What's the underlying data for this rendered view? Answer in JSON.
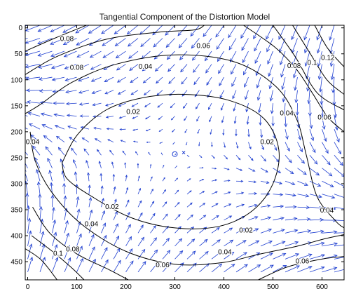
{
  "chart_data": {
    "type": "contour",
    "title": "Tangential Component of the Distortion Model",
    "xlabel": "",
    "ylabel": "",
    "xlim": [
      -5,
      645
    ],
    "ylim": [
      -5,
      485
    ],
    "y_inverted": true,
    "x_ticks": [
      0,
      100,
      200,
      300,
      400,
      500,
      600
    ],
    "x_tick_labels": [
      "0",
      "100",
      "200",
      "300",
      "400",
      "500",
      "600"
    ],
    "y_ticks": [
      0,
      50,
      100,
      150,
      200,
      250,
      300,
      350,
      400,
      450
    ],
    "y_tick_labels": [
      "0",
      "50",
      "100",
      "150",
      "200",
      "250",
      "300",
      "350",
      "400",
      "450"
    ],
    "grid": false,
    "markers": [
      {
        "symbol": "o",
        "x": 300,
        "y": 243
      },
      {
        "symbol": "x",
        "x": 318,
        "y": 240
      }
    ],
    "contour_levels": [
      0.02,
      0.04,
      0.06,
      0.08,
      0.1,
      0.12
    ],
    "contour_labels": [
      {
        "text": "0.08",
        "x": 80,
        "y": 22
      },
      {
        "text": "0.08",
        "x": 100,
        "y": 77
      },
      {
        "text": "0.04",
        "x": 240,
        "y": 75
      },
      {
        "text": "0.06",
        "x": 358,
        "y": 35
      },
      {
        "text": "0.08",
        "x": 543,
        "y": 74
      },
      {
        "text": "0.1",
        "x": 580,
        "y": 68
      },
      {
        "text": "0.12",
        "x": 612,
        "y": 58
      },
      {
        "text": "0.02",
        "x": 215,
        "y": 162
      },
      {
        "text": "0.04",
        "x": 528,
        "y": 165
      },
      {
        "text": "0.06",
        "x": 605,
        "y": 173
      },
      {
        "text": "0.02",
        "x": 488,
        "y": 220
      },
      {
        "text": "0.04",
        "x": 10,
        "y": 220
      },
      {
        "text": "0.02",
        "x": 172,
        "y": 345
      },
      {
        "text": "0.04",
        "x": 130,
        "y": 378
      },
      {
        "text": "0.02",
        "x": 445,
        "y": 390
      },
      {
        "text": "0.04",
        "x": 610,
        "y": 352
      },
      {
        "text": "0.04",
        "x": 402,
        "y": 432
      },
      {
        "text": "0.06",
        "x": 275,
        "y": 457
      },
      {
        "text": "0.06",
        "x": 560,
        "y": 450
      },
      {
        "text": "0.1",
        "x": 62,
        "y": 435
      },
      {
        "text": "0.08",
        "x": 92,
        "y": 427
      }
    ],
    "contours": [
      {
        "level": 0.02,
        "closed": true,
        "points": [
          [
            70,
            260
          ],
          [
            102,
            205
          ],
          [
            160,
            158
          ],
          [
            232,
            135
          ],
          [
            318,
            128
          ],
          [
            412,
            140
          ],
          [
            482,
            175
          ],
          [
            512,
            235
          ],
          [
            500,
            300
          ],
          [
            458,
            352
          ],
          [
            390,
            382
          ],
          [
            300,
            385
          ],
          [
            210,
            365
          ],
          [
            128,
            323
          ],
          [
            80,
            290
          ],
          [
            70,
            260
          ]
        ]
      },
      {
        "level": 0.04,
        "closed": false,
        "points": [
          [
            -5,
            165
          ],
          [
            25,
            148
          ],
          [
            90,
            105
          ],
          [
            180,
            70
          ],
          [
            300,
            52
          ],
          [
            420,
            65
          ],
          [
            505,
            112
          ],
          [
            548,
            175
          ],
          [
            568,
            245
          ],
          [
            590,
            325
          ],
          [
            628,
            372
          ],
          [
            645,
            385
          ]
        ]
      },
      {
        "level": 0.04,
        "closed": false,
        "points": [
          [
            5,
            200
          ],
          [
            15,
            255
          ],
          [
            48,
            315
          ],
          [
            110,
            378
          ],
          [
            200,
            430
          ],
          [
            300,
            455
          ],
          [
            395,
            452
          ],
          [
            470,
            436
          ],
          [
            550,
            420
          ],
          [
            605,
            406
          ],
          [
            645,
            398
          ]
        ]
      },
      {
        "level": 0.06,
        "closed": false,
        "points": [
          [
            -5,
            90
          ],
          [
            60,
            55
          ],
          [
            160,
            22
          ],
          [
            270,
            8
          ],
          [
            340,
            4
          ],
          [
            360,
            -5
          ]
        ]
      },
      {
        "level": 0.06,
        "closed": false,
        "points": [
          [
            440,
            -5
          ],
          [
            505,
            38
          ],
          [
            548,
            80
          ],
          [
            580,
            125
          ],
          [
            612,
            172
          ],
          [
            645,
            200
          ]
        ]
      },
      {
        "level": 0.06,
        "closed": false,
        "points": [
          [
            10,
            345
          ],
          [
            45,
            395
          ],
          [
            100,
            435
          ],
          [
            165,
            465
          ],
          [
            205,
            485
          ]
        ]
      },
      {
        "level": 0.06,
        "closed": false,
        "points": [
          [
            470,
            485
          ],
          [
            530,
            460
          ],
          [
            600,
            445
          ],
          [
            645,
            440
          ]
        ]
      },
      {
        "level": 0.08,
        "closed": false,
        "points": [
          [
            -5,
            45
          ],
          [
            55,
            20
          ],
          [
            120,
            -5
          ]
        ]
      },
      {
        "level": 0.08,
        "closed": false,
        "points": [
          [
            500,
            -5
          ],
          [
            545,
            55
          ],
          [
            590,
            125
          ],
          [
            645,
            158
          ]
        ]
      },
      {
        "level": 0.08,
        "closed": false,
        "points": [
          [
            8,
            400
          ],
          [
            50,
            430
          ],
          [
            90,
            462
          ],
          [
            115,
            485
          ]
        ]
      },
      {
        "level": 0.1,
        "closed": false,
        "points": [
          [
            540,
            -5
          ],
          [
            575,
            48
          ],
          [
            610,
            100
          ],
          [
            645,
            128
          ]
        ]
      },
      {
        "level": 0.1,
        "closed": false,
        "points": [
          [
            -5,
            425
          ],
          [
            28,
            447
          ],
          [
            60,
            485
          ]
        ]
      },
      {
        "level": 0.12,
        "closed": false,
        "points": [
          [
            585,
            -5
          ],
          [
            612,
            40
          ],
          [
            645,
            75
          ]
        ]
      }
    ]
  }
}
